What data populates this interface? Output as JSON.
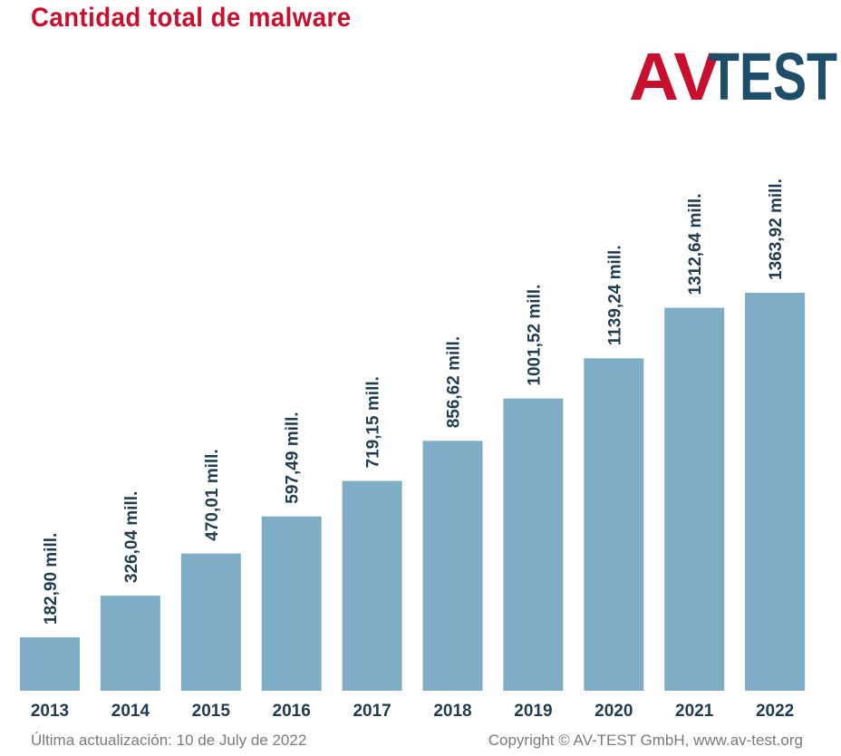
{
  "chart_data": {
    "type": "bar",
    "title": "Cantidad total de malware",
    "categories": [
      "2013",
      "2014",
      "2015",
      "2016",
      "2017",
      "2018",
      "2019",
      "2020",
      "2021",
      "2022"
    ],
    "values": [
      182.9,
      326.04,
      470.01,
      597.49,
      719.15,
      856.62,
      1001.52,
      1139.24,
      1312.64,
      1363.92
    ],
    "data_labels": [
      "182,90 mill.",
      "326,04 mill.",
      "470,01 mill.",
      "597,49 mill.",
      "719,15 mill.",
      "856,62 mill.",
      "1001,52 mill.",
      "1139,24 mill.",
      "1312,64 mill.",
      "1363,92 mill."
    ],
    "unit": "mill.",
    "xlabel": "",
    "ylabel": "",
    "ylim": [
      0,
      1363.92
    ],
    "grid": false,
    "legend": "none",
    "bar_color": "#80adc6",
    "label_color": "#1f3d4d"
  },
  "logo": {
    "text_av": "AV",
    "text_test": "TEST",
    "red": "#c8102e",
    "blue": "#1f4e6b"
  },
  "footer": {
    "updated": "Última actualización: 10 de July de 2022",
    "copyright": "Copyright © AV-TEST GmbH, www.av-test.org"
  }
}
